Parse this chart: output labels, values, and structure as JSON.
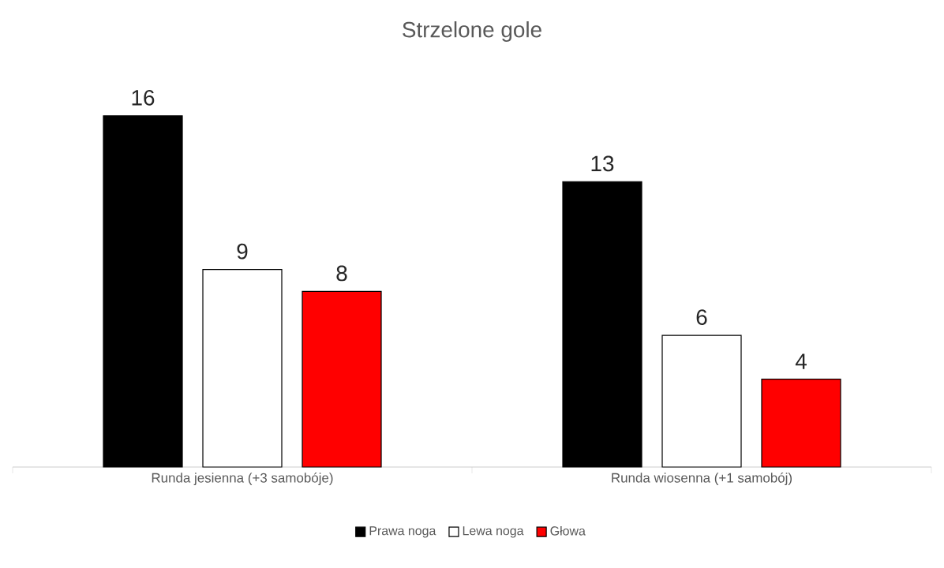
{
  "chart_data": {
    "type": "bar",
    "title": "Strzelone gole",
    "categories": [
      "Runda jesienna (+3 samobóje)",
      "Runda wiosenna (+1 samobój)"
    ],
    "series": [
      {
        "name": "Prawa noga",
        "color": "#000000",
        "values": [
          16,
          13
        ]
      },
      {
        "name": "Lewa noga",
        "color": "#ffffff",
        "values": [
          9,
          6
        ]
      },
      {
        "name": "Głowa",
        "color": "#ff0000",
        "values": [
          8,
          4
        ]
      }
    ],
    "data_labels": true,
    "legend": "bottom"
  }
}
